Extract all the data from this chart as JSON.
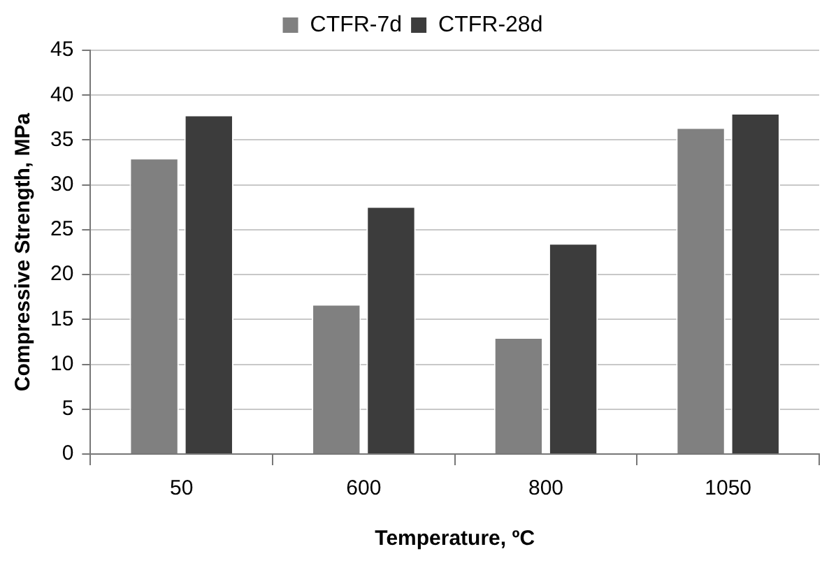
{
  "chart_data": {
    "type": "bar",
    "xlabel": "Temperature, ºC",
    "ylabel": "Compressive Strength, MPa",
    "categories": [
      "50",
      "600",
      "800",
      "1050"
    ],
    "series": [
      {
        "name": "CTFR-7d",
        "color": "#808080",
        "values": [
          33,
          16.7,
          13,
          36.4
        ]
      },
      {
        "name": "CTFR-28d",
        "color": "#3c3c3c",
        "values": [
          37.8,
          27.6,
          23.5,
          38
        ]
      }
    ],
    "ylim": [
      0,
      45
    ],
    "yticks": [
      0,
      5,
      10,
      15,
      20,
      25,
      30,
      35,
      40,
      45
    ],
    "grid": "y",
    "legend": "top"
  }
}
